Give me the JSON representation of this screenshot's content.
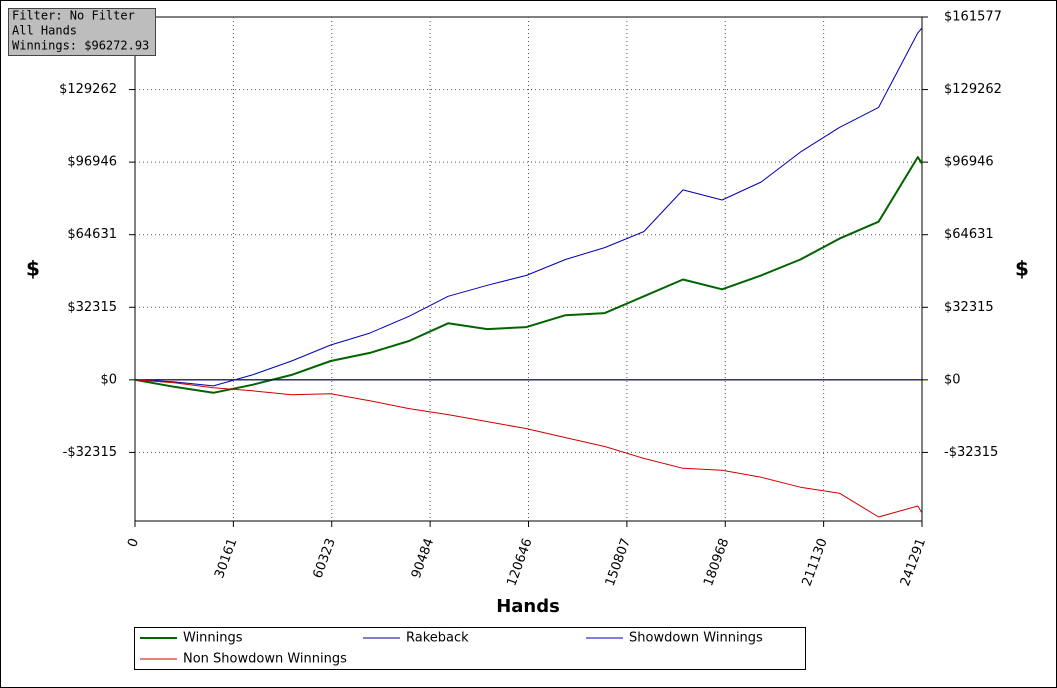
{
  "chart_data": {
    "type": "line",
    "filter_box": [
      "Filter: No Filter",
      "All Hands",
      "Winnings: $96272.93"
    ],
    "x_label": "Hands",
    "y_label": "$",
    "y2_label": "$",
    "x": [
      0,
      12000,
      24000,
      36000,
      48000,
      60000,
      72000,
      84000,
      96000,
      108000,
      120000,
      132000,
      144000,
      156000,
      168000,
      180000,
      192000,
      204000,
      216000,
      228000,
      240000,
      241291
    ],
    "series": [
      {
        "name": "Winnings",
        "color": "#006400",
        "width": 2,
        "values": [
          0,
          -3100,
          -5750,
          -2200,
          2200,
          8400,
          12000,
          17300,
          25200,
          22600,
          23500,
          28800,
          29700,
          37200,
          44700,
          40300,
          46500,
          53600,
          62900,
          70400,
          99200,
          96273
        ]
      },
      {
        "name": "Rakeback",
        "color": "#00008b",
        "width": 1,
        "values": [
          0,
          0,
          0,
          0,
          0,
          0,
          0,
          0,
          0,
          0,
          0,
          0,
          0,
          0,
          0,
          0,
          0,
          0,
          0,
          0,
          0,
          0
        ]
      },
      {
        "name": "Showdown Winnings",
        "color": "#0000b4",
        "width": 1,
        "values": [
          0,
          -900,
          -2700,
          2200,
          8400,
          15500,
          20800,
          28300,
          37200,
          42100,
          46500,
          53600,
          58900,
          66000,
          84600,
          80100,
          88100,
          101400,
          112400,
          121300,
          154500,
          156700
        ]
      },
      {
        "name": "Non Showdown Winnings",
        "color": "#d00000",
        "width": 1,
        "values": [
          0,
          -1300,
          -3500,
          -4900,
          -6600,
          -6200,
          -9300,
          -12800,
          -15500,
          -18600,
          -21700,
          -25700,
          -29700,
          -35000,
          -39400,
          -40300,
          -43400,
          -47800,
          -50500,
          -61100,
          -56200,
          -59300
        ]
      }
    ],
    "xlim": [
      0,
      241291
    ],
    "xticks": [
      0,
      30161,
      60323,
      90484,
      120646,
      150807,
      180968,
      211130,
      241291
    ],
    "ylim": [
      -62860,
      161577
    ],
    "yticks": [
      {
        "value": -32315,
        "label": "-$32315"
      },
      {
        "value": 0,
        "label": "$0"
      },
      {
        "value": 32315,
        "label": "$32315"
      },
      {
        "value": 64631,
        "label": "$64631"
      },
      {
        "value": 96946,
        "label": "$96946"
      },
      {
        "value": 129262,
        "label": "$129262"
      }
    ],
    "y2lim": [
      -62860,
      161577
    ],
    "y2ticks": [
      {
        "value": -32315,
        "label": "-$32315"
      },
      {
        "value": 0,
        "label": "$0"
      },
      {
        "value": 32315,
        "label": "$32315"
      },
      {
        "value": 64631,
        "label": "$64631"
      },
      {
        "value": 96946,
        "label": "$96946"
      },
      {
        "value": 129262,
        "label": "$129262"
      },
      {
        "value": 161577,
        "label": "$161577"
      }
    ],
    "grid": true,
    "legend": "bottom"
  }
}
